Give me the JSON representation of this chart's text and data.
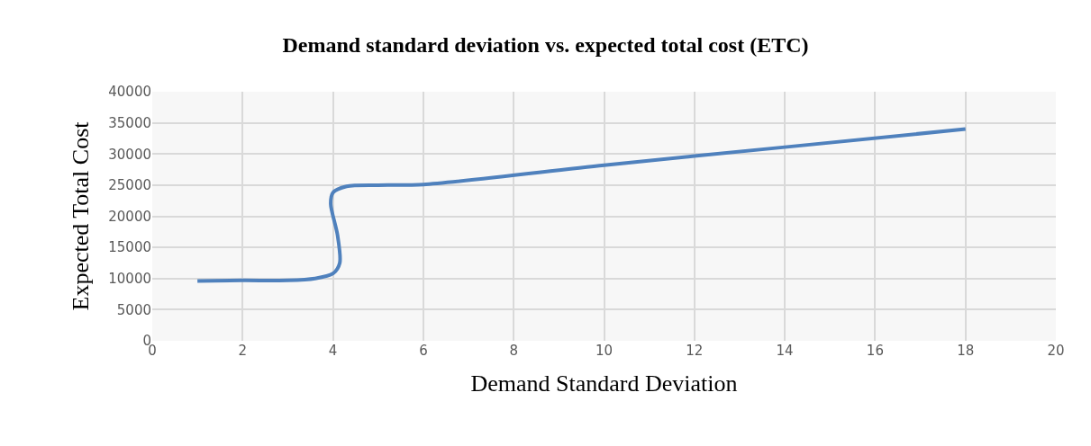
{
  "chart_data": {
    "type": "line",
    "title": "Demand standard deviation vs. expected total cost (ETC)",
    "xlabel": "Demand Standard Deviation",
    "ylabel": "Expected Total Cost",
    "series": [
      {
        "color": "#4f81bd",
        "x": [
          1,
          2,
          3,
          3.6,
          4,
          4.15,
          4.1,
          3.95,
          4,
          4.3,
          5,
          6,
          10,
          14,
          18
        ],
        "values": [
          9600,
          9700,
          9700,
          10000,
          10800,
          12500,
          17000,
          22000,
          23800,
          24800,
          25000,
          25100,
          28200,
          31100,
          34000
        ]
      }
    ],
    "xlim": [
      0,
      20
    ],
    "xticks": [
      0,
      2,
      4,
      6,
      8,
      10,
      12,
      14,
      16,
      18,
      20
    ],
    "ylim": [
      0,
      40000
    ],
    "yticks": [
      0,
      5000,
      10000,
      15000,
      20000,
      25000,
      30000,
      35000,
      40000
    ],
    "grid": true,
    "marker": "none",
    "line_style": "solid"
  }
}
